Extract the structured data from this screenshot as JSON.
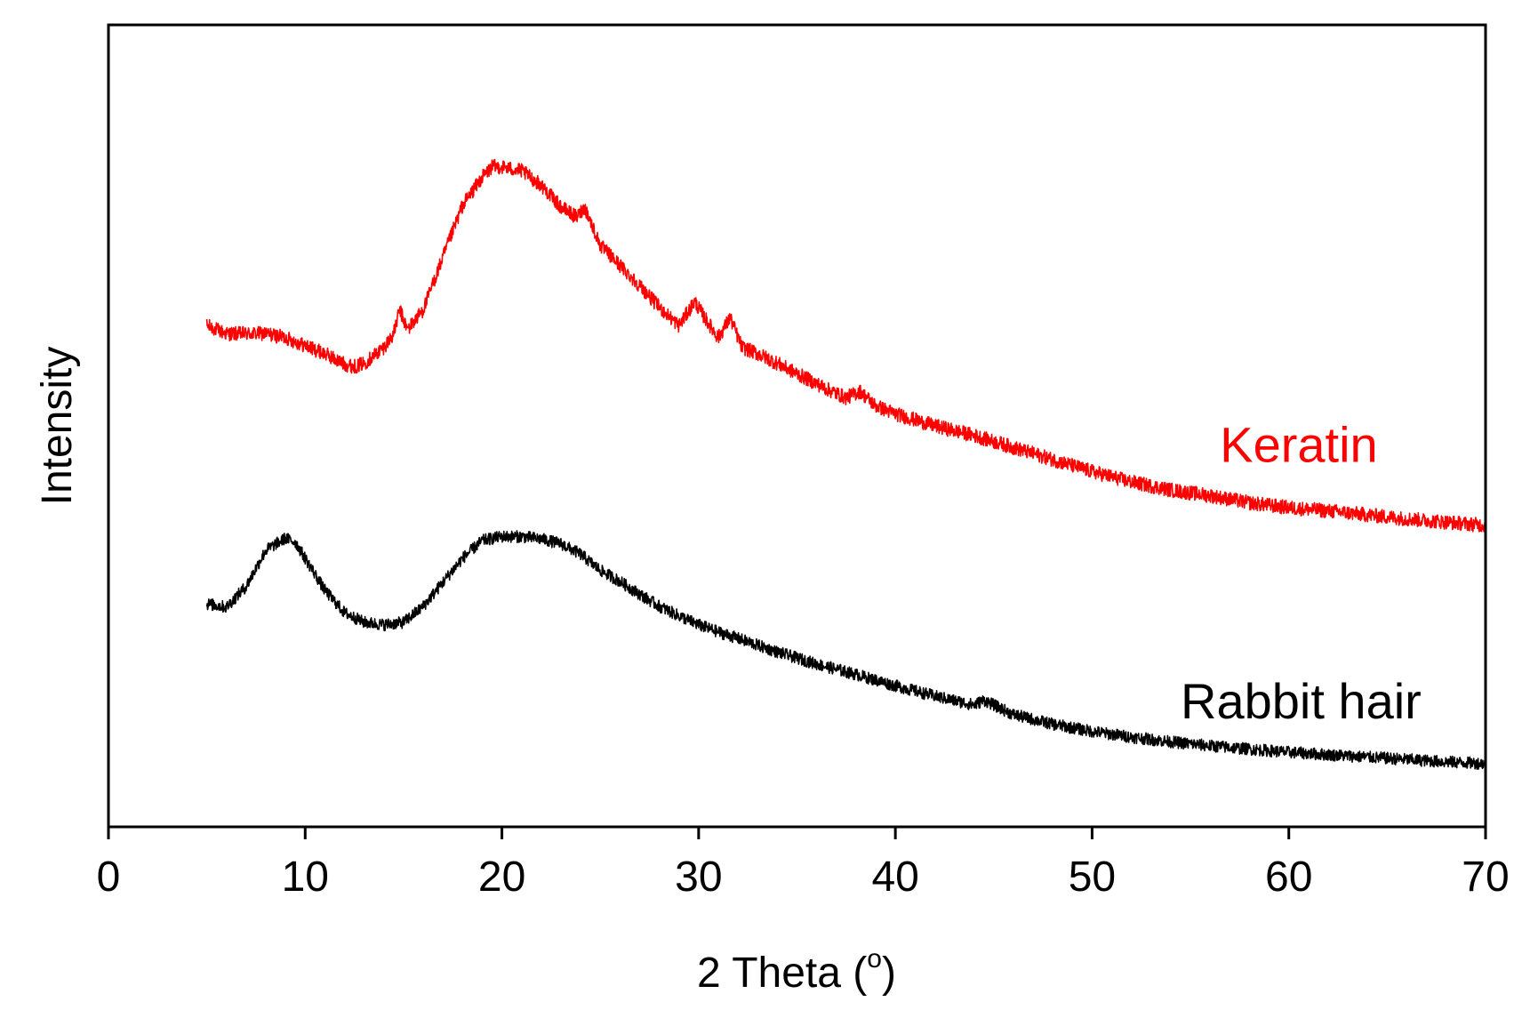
{
  "chart_data": {
    "type": "line",
    "title": "",
    "xlabel": "2 Theta (",
    "xlabel_sup": "o",
    "xlabel_close": ")",
    "ylabel": "Intensity",
    "xlim": [
      0,
      70
    ],
    "ylim": [
      0,
      100
    ],
    "xticks": [
      0,
      10,
      20,
      30,
      40,
      50,
      60,
      70
    ],
    "xtick_labels": [
      "0",
      "10",
      "20",
      "30",
      "40",
      "50",
      "60",
      "70"
    ],
    "yticks_shown": false,
    "grid": false,
    "colors": {
      "keratin": "#ff0000",
      "rabbit": "#000000",
      "axis": "#000000"
    },
    "series": [
      {
        "name": "Keratin",
        "color": "#ff0000",
        "x": [
          5,
          6,
          7,
          8,
          9,
          10,
          11,
          12,
          12.5,
          13,
          14,
          14.5,
          14.8,
          15.2,
          16,
          17,
          18,
          19,
          19.5,
          20,
          21,
          22,
          23,
          23.8,
          24.2,
          25,
          26,
          27,
          28,
          29,
          29.8,
          30.3,
          31,
          31.6,
          32.2,
          33,
          34,
          35,
          35.8,
          36.6,
          37.5,
          38.2,
          39,
          40,
          42,
          44,
          46,
          48,
          50,
          52,
          54,
          56,
          58,
          60,
          62,
          64,
          66,
          68,
          70
        ],
        "y": [
          62.5,
          61.5,
          61.5,
          61.5,
          61.0,
          60.0,
          59.0,
          57.7,
          57.4,
          57.8,
          59.8,
          61.5,
          64.5,
          62.0,
          64.5,
          71.0,
          77.5,
          81.0,
          82.3,
          82.3,
          81.8,
          80.0,
          77.3,
          76.0,
          77.3,
          72.5,
          70.0,
          67.5,
          64.8,
          62.5,
          65.5,
          63.5,
          61.0,
          63.5,
          59.8,
          59.0,
          57.8,
          56.5,
          55.5,
          54.5,
          53.5,
          54.3,
          52.5,
          51.5,
          50.0,
          48.8,
          47.3,
          45.8,
          44.3,
          43.0,
          42.0,
          41.3,
          40.4,
          39.8,
          39.4,
          38.9,
          38.4,
          38.0,
          37.6
        ]
      },
      {
        "name": "Rabbit hair",
        "color": "#000000",
        "x": [
          5,
          6,
          7,
          8,
          9,
          9.5,
          10,
          11,
          12,
          13,
          14,
          15,
          16,
          17,
          18,
          19,
          20,
          21,
          22,
          23,
          24,
          25,
          26,
          27,
          28,
          29,
          30,
          31,
          32,
          34,
          36,
          38,
          40,
          42,
          44,
          44.5,
          46,
          48,
          50,
          52,
          54,
          56,
          58,
          60,
          62,
          64,
          66,
          68,
          70
        ],
        "y": [
          27.8,
          27.4,
          30.0,
          34.5,
          36.0,
          35.5,
          33.5,
          29.5,
          26.7,
          25.5,
          25.2,
          25.5,
          27.5,
          30.5,
          33.5,
          35.7,
          36.2,
          36.2,
          35.9,
          35.3,
          34.0,
          32.0,
          30.6,
          29.0,
          27.5,
          26.3,
          25.2,
          24.3,
          23.5,
          21.8,
          20.3,
          19.0,
          17.6,
          16.3,
          15.2,
          15.8,
          14.0,
          12.8,
          11.9,
          11.2,
          10.6,
          10.1,
          9.7,
          9.3,
          9.0,
          8.7,
          8.4,
          8.1,
          7.9
        ]
      }
    ],
    "annotations": [
      {
        "text": "Keratin",
        "x": 56.5,
        "y": 45.5,
        "color": "#ff0000"
      },
      {
        "text": "Rabbit hair",
        "x": 54.5,
        "y": 13.5,
        "color": "#000000"
      }
    ]
  }
}
